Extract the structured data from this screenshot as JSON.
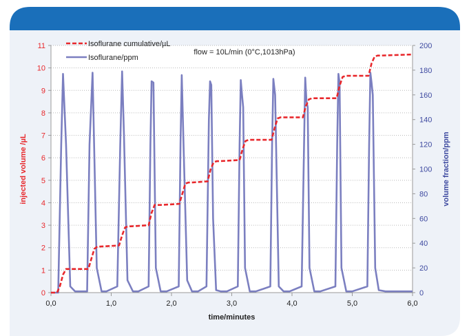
{
  "colors": {
    "header_blue": "#1a6fba",
    "panel_bg": "#eef2f8",
    "cumulative": "#e8282c",
    "ppm": "#7b7fc0",
    "grid": "#b8b8b8"
  },
  "chart_data": {
    "type": "line",
    "annotation": "flow = 10L/min (0°C,1013hPa)",
    "xlabel": "time/minutes",
    "ylabel_left": "injected volume /µL",
    "ylabel_right": "volume fraction/ppm",
    "xlim": [
      0,
      6
    ],
    "ylim_left": [
      0,
      11
    ],
    "ylim_right": [
      0,
      200
    ],
    "x_ticks": [
      "0,0",
      "1,0",
      "2,0",
      "3,0",
      "4,0",
      "5,0",
      "6,0"
    ],
    "y_left_ticks": [
      "0",
      "1",
      "2",
      "3",
      "4",
      "5",
      "6",
      "7",
      "8",
      "9",
      "10",
      "11"
    ],
    "y_right_ticks": [
      "0",
      "20",
      "40",
      "60",
      "80",
      "100",
      "120",
      "140",
      "160",
      "180",
      "200"
    ],
    "grid": true,
    "legend_position": "top-left",
    "series": [
      {
        "name": "Isoflurane cumulative/µL",
        "axis": "left",
        "style": "dashed",
        "x": [
          0.0,
          0.1,
          0.15,
          0.2,
          0.25,
          0.3,
          0.62,
          0.67,
          0.72,
          0.77,
          0.82,
          1.13,
          1.18,
          1.23,
          1.28,
          1.33,
          1.62,
          1.67,
          1.72,
          1.77,
          1.82,
          2.13,
          2.18,
          2.23,
          2.28,
          2.33,
          2.6,
          2.65,
          2.7,
          2.75,
          2.8,
          3.13,
          3.18,
          3.23,
          3.28,
          3.33,
          3.66,
          3.71,
          3.76,
          3.81,
          3.86,
          4.18,
          4.23,
          4.28,
          4.33,
          4.38,
          4.74,
          4.79,
          4.84,
          4.89,
          4.94,
          5.27,
          5.32,
          5.37,
          5.42,
          5.47,
          6.0
        ],
        "values": [
          0.0,
          0.0,
          0.3,
          0.8,
          1.05,
          1.05,
          1.05,
          1.5,
          1.95,
          2.05,
          2.05,
          2.1,
          2.55,
          2.9,
          2.95,
          2.95,
          3.0,
          3.55,
          3.9,
          3.9,
          3.9,
          3.95,
          4.4,
          4.85,
          4.9,
          4.9,
          4.95,
          5.5,
          5.8,
          5.85,
          5.85,
          5.9,
          6.4,
          6.75,
          6.8,
          6.8,
          6.8,
          7.3,
          7.75,
          7.8,
          7.8,
          7.8,
          8.3,
          8.6,
          8.65,
          8.65,
          8.65,
          9.2,
          9.6,
          9.65,
          9.65,
          9.65,
          10.2,
          10.5,
          10.55,
          10.55,
          10.6
        ]
      },
      {
        "name": "Isoflurane/ppm",
        "axis": "right",
        "style": "solid",
        "x": [
          0.0,
          0.12,
          0.17,
          0.2,
          0.25,
          0.32,
          0.4,
          0.6,
          0.64,
          0.69,
          0.76,
          0.84,
          0.92,
          1.1,
          1.15,
          1.18,
          1.21,
          1.27,
          1.36,
          1.45,
          1.62,
          1.65,
          1.67,
          1.7,
          1.74,
          1.82,
          1.92,
          2.12,
          2.15,
          2.17,
          2.2,
          2.26,
          2.34,
          2.44,
          2.58,
          2.62,
          2.64,
          2.66,
          2.69,
          2.74,
          2.82,
          2.92,
          3.1,
          3.13,
          3.15,
          3.17,
          3.19,
          3.22,
          3.3,
          3.4,
          3.64,
          3.67,
          3.69,
          3.72,
          3.78,
          3.86,
          3.96,
          4.16,
          4.2,
          4.22,
          4.24,
          4.26,
          4.29,
          4.37,
          4.47,
          4.72,
          4.75,
          4.77,
          4.79,
          4.82,
          4.9,
          5.0,
          5.25,
          5.28,
          5.3,
          5.32,
          5.34,
          5.38,
          5.44,
          5.55,
          6.0
        ],
        "values": [
          0,
          0,
          120,
          177,
          120,
          5,
          1,
          1,
          120,
          178,
          20,
          1,
          1,
          5,
          120,
          179,
          130,
          10,
          1,
          1,
          5,
          120,
          171,
          170,
          20,
          1,
          1,
          5,
          120,
          176,
          120,
          10,
          1,
          1,
          5,
          140,
          171,
          168,
          60,
          2,
          1,
          1,
          5,
          120,
          172,
          160,
          150,
          20,
          1,
          1,
          5,
          120,
          173,
          160,
          5,
          1,
          1,
          5,
          120,
          174,
          155,
          150,
          20,
          1,
          1,
          5,
          120,
          177,
          170,
          20,
          1,
          1,
          5,
          120,
          178,
          170,
          160,
          20,
          2,
          1,
          1
        ]
      }
    ]
  }
}
